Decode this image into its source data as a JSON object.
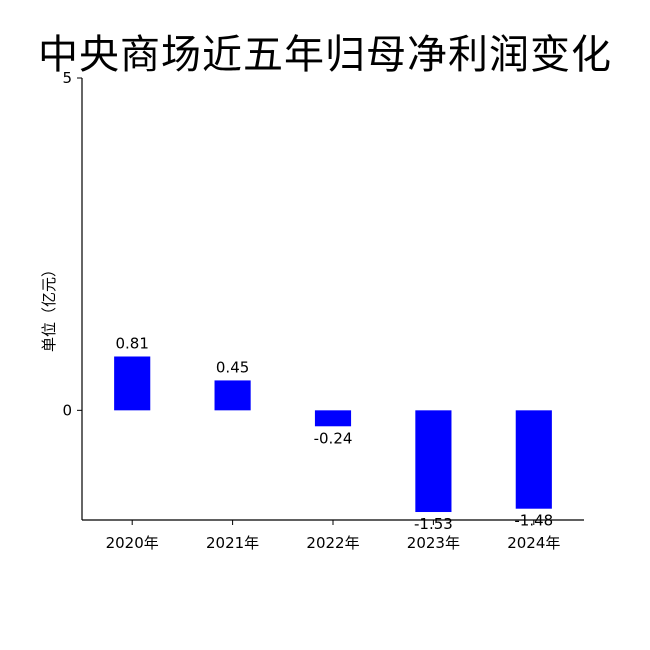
{
  "chart_data": {
    "type": "bar",
    "title": "中央商场近五年归母净利润变化",
    "xlabel": "",
    "ylabel": "单位（亿元）",
    "categories": [
      "2020年",
      "2021年",
      "2022年",
      "2023年",
      "2024年"
    ],
    "values": [
      0.81,
      0.45,
      -0.24,
      -1.53,
      -1.48
    ],
    "value_labels": [
      "0.81",
      "0.45",
      "-0.24",
      "-1.53",
      "-1.48"
    ],
    "ylim": [
      -1.65,
      5
    ],
    "yticks": [
      0,
      5
    ],
    "ytick_labels": [
      "0",
      "5"
    ],
    "grid": false,
    "bar_color": "#0000ff"
  }
}
